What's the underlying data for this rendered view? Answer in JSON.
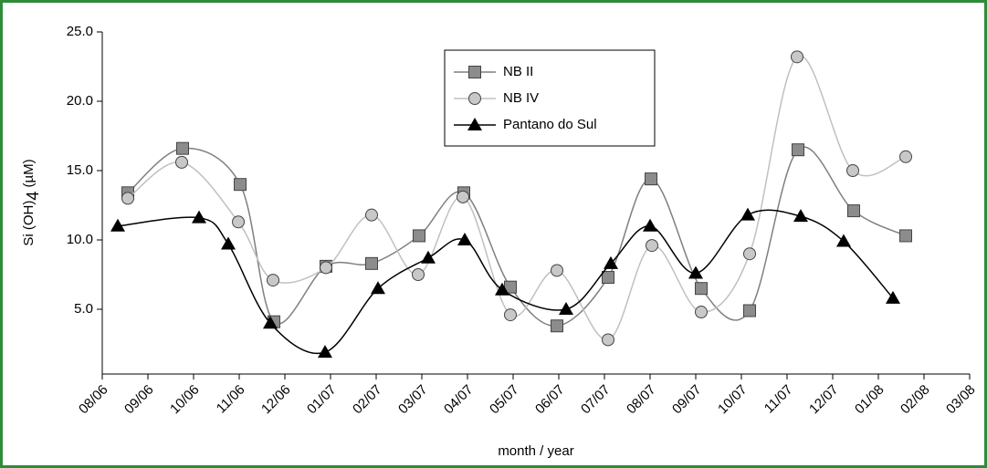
{
  "chart_data": {
    "type": "line",
    "xlabel": "month / year",
    "ylabel_parts": [
      "Si (OH)",
      "4",
      " (µM)"
    ],
    "xlim": [
      0,
      19
    ],
    "xticks": [
      {
        "value": 0,
        "label": "08/06"
      },
      {
        "value": 1,
        "label": "09/06"
      },
      {
        "value": 2,
        "label": "10/06"
      },
      {
        "value": 3,
        "label": "11/06"
      },
      {
        "value": 4,
        "label": "12/06"
      },
      {
        "value": 5,
        "label": "01/07"
      },
      {
        "value": 6,
        "label": "02/07"
      },
      {
        "value": 7,
        "label": "03/07"
      },
      {
        "value": 8,
        "label": "04/07"
      },
      {
        "value": 9,
        "label": "05/07"
      },
      {
        "value": 10,
        "label": "06/07"
      },
      {
        "value": 11,
        "label": "07/07"
      },
      {
        "value": 12,
        "label": "08/07"
      },
      {
        "value": 13,
        "label": "09/07"
      },
      {
        "value": 14,
        "label": "10/07"
      },
      {
        "value": 15,
        "label": "11/07"
      },
      {
        "value": 16,
        "label": "12/07"
      },
      {
        "value": 17,
        "label": "01/08"
      },
      {
        "value": 18,
        "label": "02/08"
      },
      {
        "value": 19,
        "label": "03/08"
      }
    ],
    "ylim": [
      0,
      25
    ],
    "yticks": [
      {
        "value": 5,
        "label": "5.0"
      },
      {
        "value": 10,
        "label": "10.0"
      },
      {
        "value": 15,
        "label": "15.0"
      },
      {
        "value": 20,
        "label": "20.0"
      },
      {
        "value": 25,
        "label": "25.0"
      }
    ],
    "legend": "top",
    "smooth": true,
    "series": [
      {
        "name": "NB II",
        "color": "#7f7f7f",
        "marker": "square",
        "marker_color": "#8c8c8c",
        "x": [
          0.56,
          1.76,
          3.02,
          3.76,
          4.9,
          5.9,
          6.94,
          7.92,
          8.94,
          9.96,
          11.08,
          12.02,
          13.12,
          14.18,
          15.24,
          16.46,
          17.6
        ],
        "values": [
          13.4,
          16.6,
          14.0,
          4.1,
          8.1,
          8.3,
          10.3,
          13.4,
          6.6,
          3.8,
          7.3,
          14.4,
          6.5,
          4.9,
          16.5,
          12.1,
          10.3
        ]
      },
      {
        "name": "NB IV",
        "color": "#c0c0c0",
        "marker": "circle",
        "marker_color": "#c8c8c8",
        "x": [
          0.56,
          1.74,
          2.98,
          3.74,
          4.9,
          5.9,
          6.92,
          7.9,
          8.94,
          9.96,
          11.08,
          12.04,
          13.12,
          14.18,
          15.22,
          16.44,
          17.6
        ],
        "values": [
          13.0,
          15.6,
          11.3,
          7.1,
          8.0,
          11.8,
          7.5,
          13.1,
          4.6,
          7.8,
          2.8,
          9.6,
          4.8,
          9.0,
          23.2,
          15.0,
          16.0
        ]
      },
      {
        "name": "Pantano do Sul",
        "color": "#000000",
        "marker": "triangle",
        "marker_color": "#000000",
        "x": [
          0.34,
          2.12,
          2.76,
          3.68,
          4.88,
          6.04,
          7.14,
          7.94,
          8.76,
          10.16,
          11.14,
          12.0,
          13.0,
          14.14,
          15.3,
          16.24,
          17.32
        ],
        "values": [
          11.0,
          11.6,
          9.7,
          4.0,
          1.9,
          6.5,
          8.7,
          10.0,
          6.4,
          5.0,
          8.3,
          11.0,
          7.6,
          11.8,
          11.7,
          9.9,
          5.8
        ]
      }
    ]
  }
}
